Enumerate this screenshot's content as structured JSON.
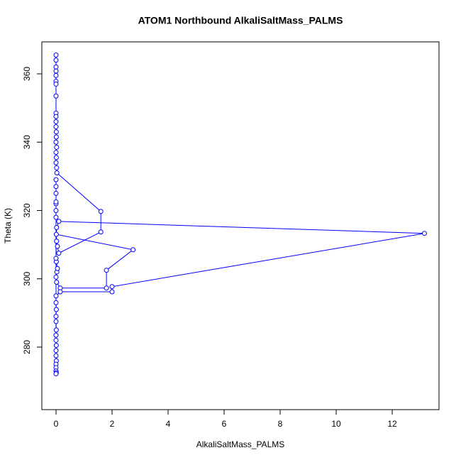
{
  "chart_data": {
    "type": "line",
    "title": "ATOM1 Northbound AlkaliSaltMass_PALMS",
    "xlabel": "AlkaliSaltMass_PALMS",
    "ylabel": "Theta (K)",
    "color": "#0000ff",
    "xlim": [
      -0.506,
      13.67
    ],
    "ylim": [
      261.7,
      369.35
    ],
    "xticks": [
      0,
      2,
      4,
      6,
      8,
      10,
      12
    ],
    "yticks": [
      280,
      300,
      320,
      340,
      360
    ],
    "x": [
      0,
      0,
      0,
      0,
      0,
      0,
      0,
      0,
      0,
      0,
      0,
      0,
      0.01,
      0.01,
      0,
      0.02,
      0,
      0.01,
      0,
      0.02,
      0.03,
      1.6,
      1.6,
      0.1,
      0.05,
      0.02,
      0.01,
      2.75,
      1.8,
      1.8,
      0.15,
      0.02,
      0,
      0.03,
      0.05,
      0.01,
      0,
      0.02,
      0.1,
      13.15,
      2.0,
      2.0,
      0.15,
      0,
      0,
      0.01,
      0,
      0,
      0.01,
      0,
      0,
      0.01,
      0,
      0,
      0.01,
      0,
      0,
      0,
      0.01,
      0,
      0,
      0,
      0,
      0,
      0,
      0,
      0
    ],
    "y": [
      365.5,
      364,
      362,
      360.8,
      359.5,
      357.8,
      357,
      353.5,
      348.5,
      347.5,
      346,
      344.5,
      343,
      341.5,
      340,
      338.5,
      337,
      335.5,
      334,
      332.5,
      331,
      319.7,
      313.7,
      307.5,
      309.5,
      311,
      313,
      308.5,
      302.5,
      297.3,
      297.3,
      299,
      300.5,
      302,
      303,
      305,
      306,
      315,
      316.8,
      313.3,
      297.7,
      296.2,
      296.2,
      295,
      293,
      291,
      289,
      287.5,
      285,
      283.5,
      282,
      280.5,
      279,
      277.5,
      276,
      275,
      274,
      273,
      272.5,
      272.2,
      318,
      320,
      322,
      325,
      327,
      329,
      322.5
    ]
  }
}
